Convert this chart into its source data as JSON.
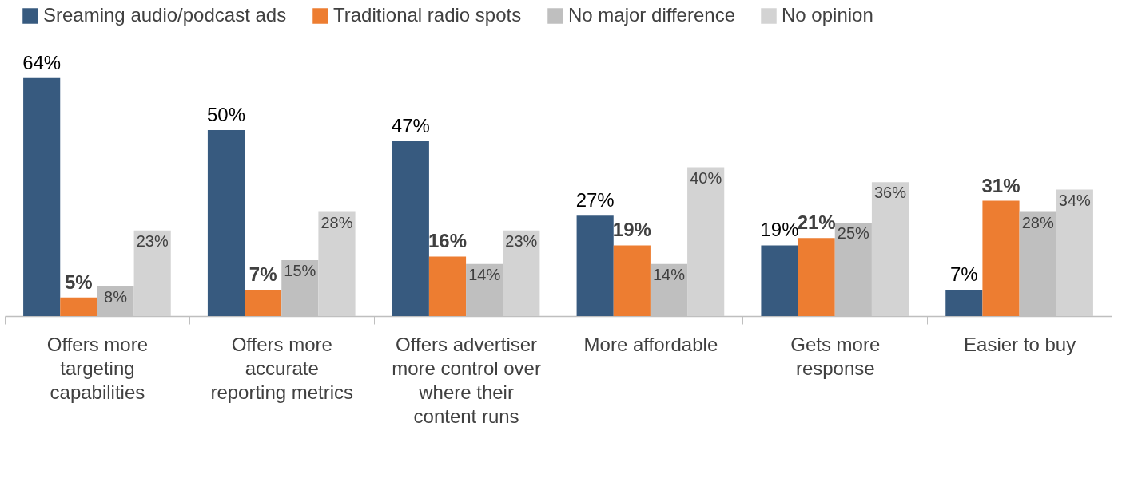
{
  "chart_data": {
    "type": "bar",
    "categories": [
      "Offers more targeting capabilities",
      "Offers more accurate reporting metrics",
      "Offers advertiser more control over where their content runs",
      "More affordable",
      "Gets more response",
      "Easier to buy"
    ],
    "series": [
      {
        "name": "Sreaming audio/podcast ads",
        "color": "#375a7f",
        "values": [
          64,
          50,
          47,
          27,
          19,
          7
        ],
        "value_labels": [
          "64%",
          "50%",
          "47%",
          "27%",
          "19%",
          "7%"
        ]
      },
      {
        "name": "Traditional radio spots",
        "color": "#ed7d31",
        "values": [
          5,
          7,
          16,
          19,
          21,
          31
        ],
        "value_labels": [
          "5%",
          "7%",
          "16%",
          "19%",
          "21%",
          "31%"
        ]
      },
      {
        "name": "No major difference",
        "color": "#bfbfbf",
        "values": [
          8,
          15,
          14,
          14,
          25,
          28
        ],
        "value_labels": [
          "8%",
          "15%",
          "14%",
          "14%",
          "25%",
          "28%"
        ]
      },
      {
        "name": "No opinion",
        "color": "#d3d3d3",
        "values": [
          23,
          28,
          23,
          40,
          36,
          34
        ],
        "value_labels": [
          "23%",
          "28%",
          "23%",
          "40%",
          "36%",
          "34%"
        ]
      }
    ],
    "legend": "top left"
  }
}
